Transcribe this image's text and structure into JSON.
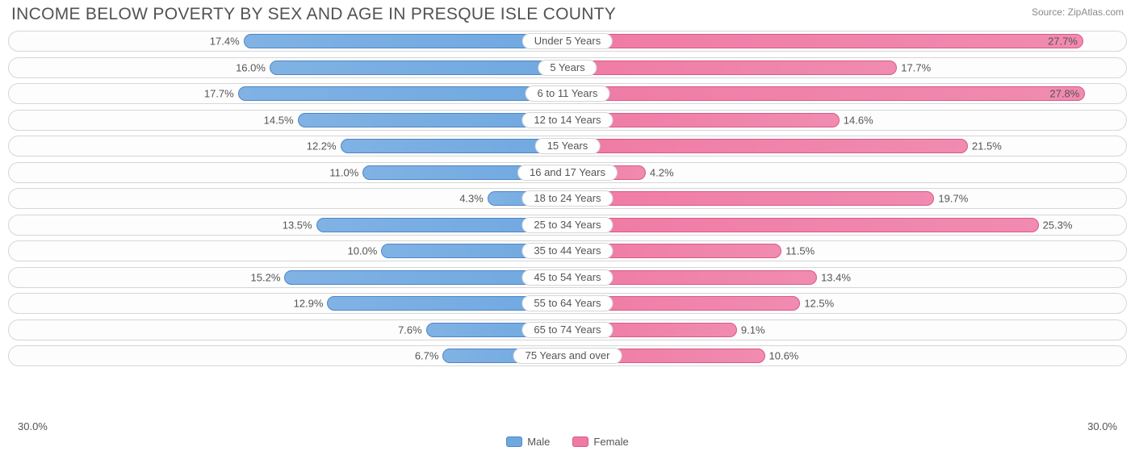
{
  "title": "INCOME BELOW POVERTY BY SEX AND AGE IN PRESQUE ISLE COUNTY",
  "source": "Source: ZipAtlas.com",
  "axis_max": 30.0,
  "axis_label_left": "30.0%",
  "axis_label_right": "30.0%",
  "max_threshold_for_inside": 26.0,
  "colors": {
    "male_fill": "#6fa8e0",
    "male_border": "#4f86c6",
    "female_fill": "#ef7ba5",
    "female_border": "#d85a88",
    "row_border": "#d6d6d6",
    "text": "#555555",
    "title_text": "#525252",
    "source_text": "#8a8a8a",
    "background": "#ffffff"
  },
  "legend": {
    "male": "Male",
    "female": "Female"
  },
  "rows": [
    {
      "category": "Under 5 Years",
      "male": 17.4,
      "female": 27.7
    },
    {
      "category": "5 Years",
      "male": 16.0,
      "female": 17.7
    },
    {
      "category": "6 to 11 Years",
      "male": 17.7,
      "female": 27.8
    },
    {
      "category": "12 to 14 Years",
      "male": 14.5,
      "female": 14.6
    },
    {
      "category": "15 Years",
      "male": 12.2,
      "female": 21.5
    },
    {
      "category": "16 and 17 Years",
      "male": 11.0,
      "female": 4.2
    },
    {
      "category": "18 to 24 Years",
      "male": 4.3,
      "female": 19.7
    },
    {
      "category": "25 to 34 Years",
      "male": 13.5,
      "female": 25.3
    },
    {
      "category": "35 to 44 Years",
      "male": 10.0,
      "female": 11.5
    },
    {
      "category": "45 to 54 Years",
      "male": 15.2,
      "female": 13.4
    },
    {
      "category": "55 to 64 Years",
      "male": 12.9,
      "female": 12.5
    },
    {
      "category": "65 to 74 Years",
      "male": 7.6,
      "female": 9.1
    },
    {
      "category": "75 Years and over",
      "male": 6.7,
      "female": 10.6
    }
  ]
}
